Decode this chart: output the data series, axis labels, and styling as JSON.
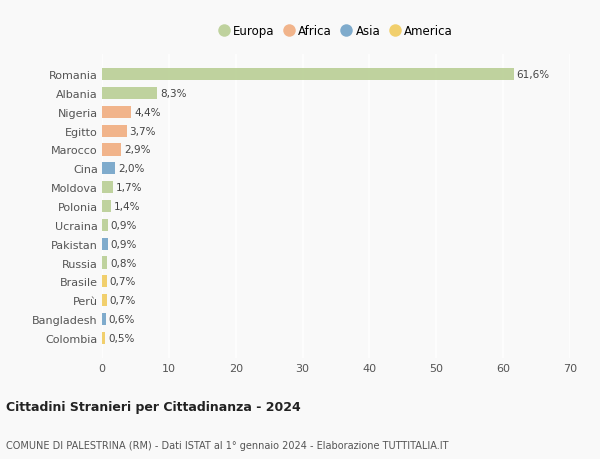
{
  "countries": [
    "Romania",
    "Albania",
    "Nigeria",
    "Egitto",
    "Marocco",
    "Cina",
    "Moldova",
    "Polonia",
    "Ucraina",
    "Pakistan",
    "Russia",
    "Brasile",
    "Perù",
    "Bangladesh",
    "Colombia"
  ],
  "values": [
    61.6,
    8.3,
    4.4,
    3.7,
    2.9,
    2.0,
    1.7,
    1.4,
    0.9,
    0.9,
    0.8,
    0.7,
    0.7,
    0.6,
    0.5
  ],
  "labels": [
    "61,6%",
    "8,3%",
    "4,4%",
    "3,7%",
    "2,9%",
    "2,0%",
    "1,7%",
    "1,4%",
    "0,9%",
    "0,9%",
    "0,8%",
    "0,7%",
    "0,7%",
    "0,6%",
    "0,5%"
  ],
  "continents": [
    "Europa",
    "Europa",
    "Africa",
    "Africa",
    "Africa",
    "Asia",
    "Europa",
    "Europa",
    "Europa",
    "Asia",
    "Europa",
    "America",
    "America",
    "Asia",
    "America"
  ],
  "continent_colors": {
    "Europa": "#b5cc8e",
    "Africa": "#f0a878",
    "Asia": "#6a9ec5",
    "America": "#f0c855"
  },
  "legend_order": [
    "Europa",
    "Africa",
    "Asia",
    "America"
  ],
  "title": "Cittadini Stranieri per Cittadinanza - 2024",
  "subtitle": "COMUNE DI PALESTRINA (RM) - Dati ISTAT al 1° gennaio 2024 - Elaborazione TUTTITALIA.IT",
  "xlim": [
    0,
    70
  ],
  "xticks": [
    0,
    10,
    20,
    30,
    40,
    50,
    60,
    70
  ],
  "background_color": "#f9f9f9",
  "grid_color": "#ffffff",
  "bar_height": 0.65
}
